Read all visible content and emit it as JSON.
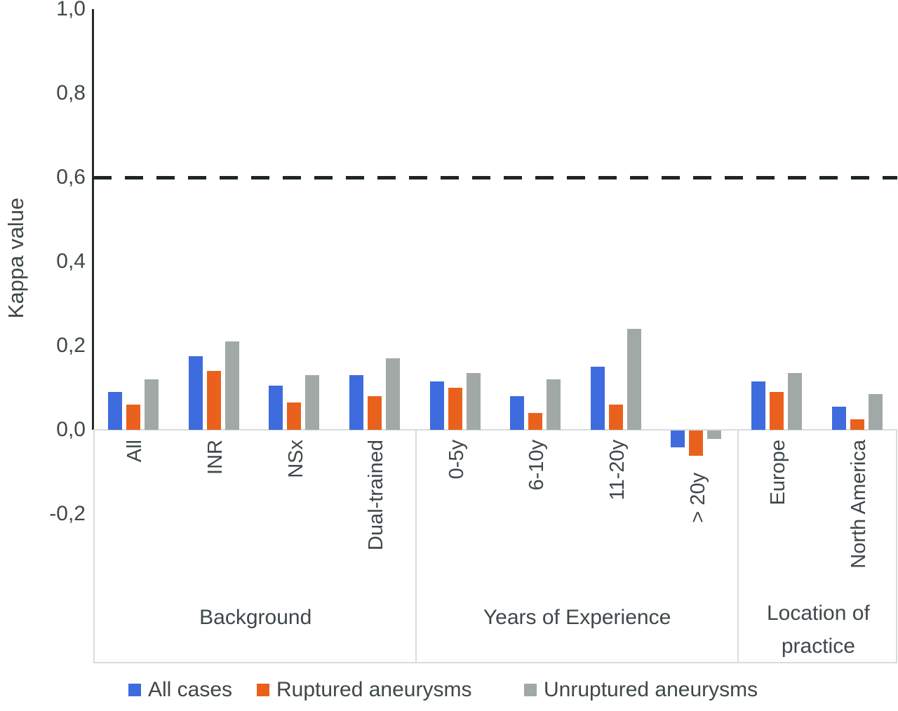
{
  "chart_data": {
    "type": "bar",
    "title": "",
    "ylabel": "Kappa value",
    "xlabel": "",
    "ylim": [
      -0.2,
      1.0
    ],
    "grid": false,
    "legend_position": "bottom",
    "decimal_separator": ",",
    "y_ticks": [
      {
        "value": 1.0,
        "label": "1,0"
      },
      {
        "value": 0.8,
        "label": "0,8"
      },
      {
        "value": 0.6,
        "label": "0,6"
      },
      {
        "value": 0.4,
        "label": "0,4"
      },
      {
        "value": 0.2,
        "label": "0,2"
      },
      {
        "value": 0.0,
        "label": "0,0"
      },
      {
        "value": -0.2,
        "label": "-0,2"
      }
    ],
    "reference_line": {
      "value": 0.6,
      "style": "dashed",
      "color": "#1f2525"
    },
    "groups": [
      {
        "label": "Background",
        "span": [
          0,
          4
        ]
      },
      {
        "label": "Years of Experience",
        "span": [
          4,
          8
        ]
      },
      {
        "label": "Location of practice",
        "span": [
          8,
          10
        ]
      }
    ],
    "categories": [
      "All",
      "INR",
      "NSx",
      "Dual-trained",
      "0-5y",
      "6-10y",
      "11-20y",
      "> 20y",
      "Europe",
      "North America"
    ],
    "series": [
      {
        "name": "All cases",
        "color": "#3e6bde",
        "values": [
          0.09,
          0.175,
          0.105,
          0.13,
          0.115,
          0.08,
          0.15,
          -0.04,
          0.115,
          0.055
        ]
      },
      {
        "name": "Ruptured aneurysms",
        "color": "#ea611e",
        "values": [
          0.06,
          0.14,
          0.065,
          0.08,
          0.1,
          0.04,
          0.06,
          -0.06,
          0.09,
          0.025
        ]
      },
      {
        "name": "Unruptured aneurysms",
        "color": "#a1a9a7",
        "values": [
          0.12,
          0.21,
          0.13,
          0.17,
          0.135,
          0.12,
          0.24,
          -0.02,
          0.135,
          0.085
        ]
      }
    ]
  }
}
